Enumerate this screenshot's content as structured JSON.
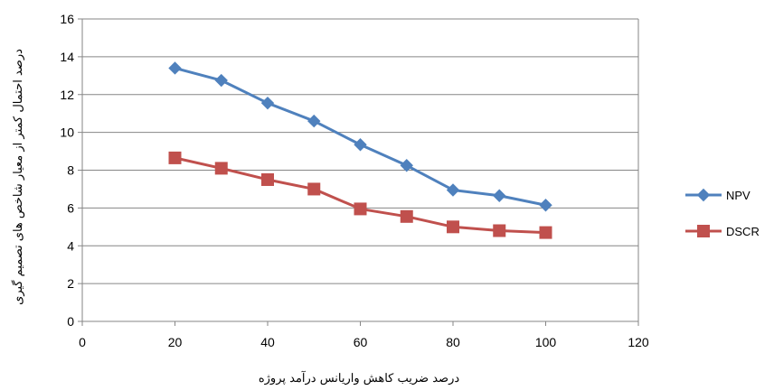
{
  "chart_data": {
    "type": "line",
    "xlabel": "درصد ضریب کاهش واریانس درآمد پروژه",
    "ylabel": "درصد احتمال کمتر از معیار شاخص های تصمیم گیری",
    "xlim": [
      0,
      120
    ],
    "ylim": [
      0,
      16
    ],
    "xticks": [
      "0",
      "20",
      "40",
      "60",
      "80",
      "100",
      "120"
    ],
    "yticks": [
      "0",
      "2",
      "4",
      "6",
      "8",
      "10",
      "12",
      "14",
      "16"
    ],
    "grid": "horizontal",
    "legend_position": "right",
    "x": [
      20,
      30,
      40,
      50,
      60,
      70,
      80,
      90,
      100
    ],
    "series": [
      {
        "name": "NPV",
        "color": "#4F81BD",
        "marker": "diamond",
        "values": [
          13.4,
          12.75,
          11.55,
          10.6,
          9.35,
          8.25,
          6.95,
          6.65,
          6.15
        ]
      },
      {
        "name": "DSCR",
        "color": "#C0504D",
        "marker": "square",
        "values": [
          8.65,
          8.1,
          7.5,
          7.0,
          5.95,
          5.55,
          5.0,
          4.8,
          4.7
        ]
      }
    ]
  }
}
